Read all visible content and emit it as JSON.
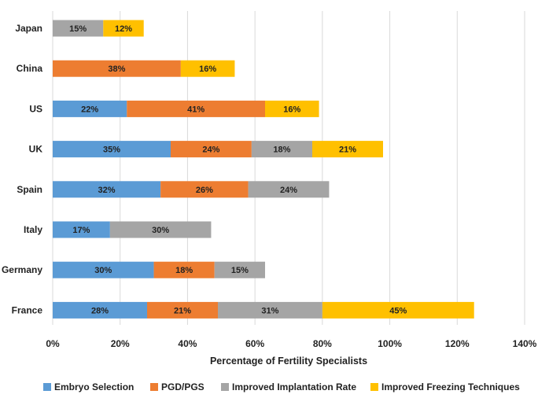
{
  "chart_data": {
    "type": "bar",
    "orientation": "horizontal",
    "stacked": true,
    "title": "",
    "xlabel": "Percentage of Fertility Specialists",
    "ylabel": "",
    "xlim": [
      0,
      140
    ],
    "xticks": [
      0,
      20,
      40,
      60,
      80,
      100,
      120,
      140
    ],
    "tick_suffix": "%",
    "grid": "vertical",
    "legend_position": "bottom",
    "categories": [
      "Japan",
      "China",
      "US",
      "UK",
      "Spain",
      "Italy",
      "Germany",
      "France"
    ],
    "series": [
      {
        "name": "Embryo Selection",
        "color": "#5b9bd5",
        "values": [
          0,
          0,
          22,
          35,
          32,
          17,
          30,
          28
        ]
      },
      {
        "name": "PGD/PGS",
        "color": "#ed7d31",
        "values": [
          0,
          38,
          41,
          24,
          26,
          0,
          18,
          21
        ]
      },
      {
        "name": "Improved Implantation Rate",
        "color": "#a5a5a5",
        "values": [
          15,
          0,
          0,
          18,
          24,
          30,
          15,
          31
        ]
      },
      {
        "name": "Improved Freezing Techniques",
        "color": "#ffc000",
        "values": [
          12,
          16,
          16,
          21,
          0,
          0,
          0,
          45
        ]
      }
    ]
  }
}
